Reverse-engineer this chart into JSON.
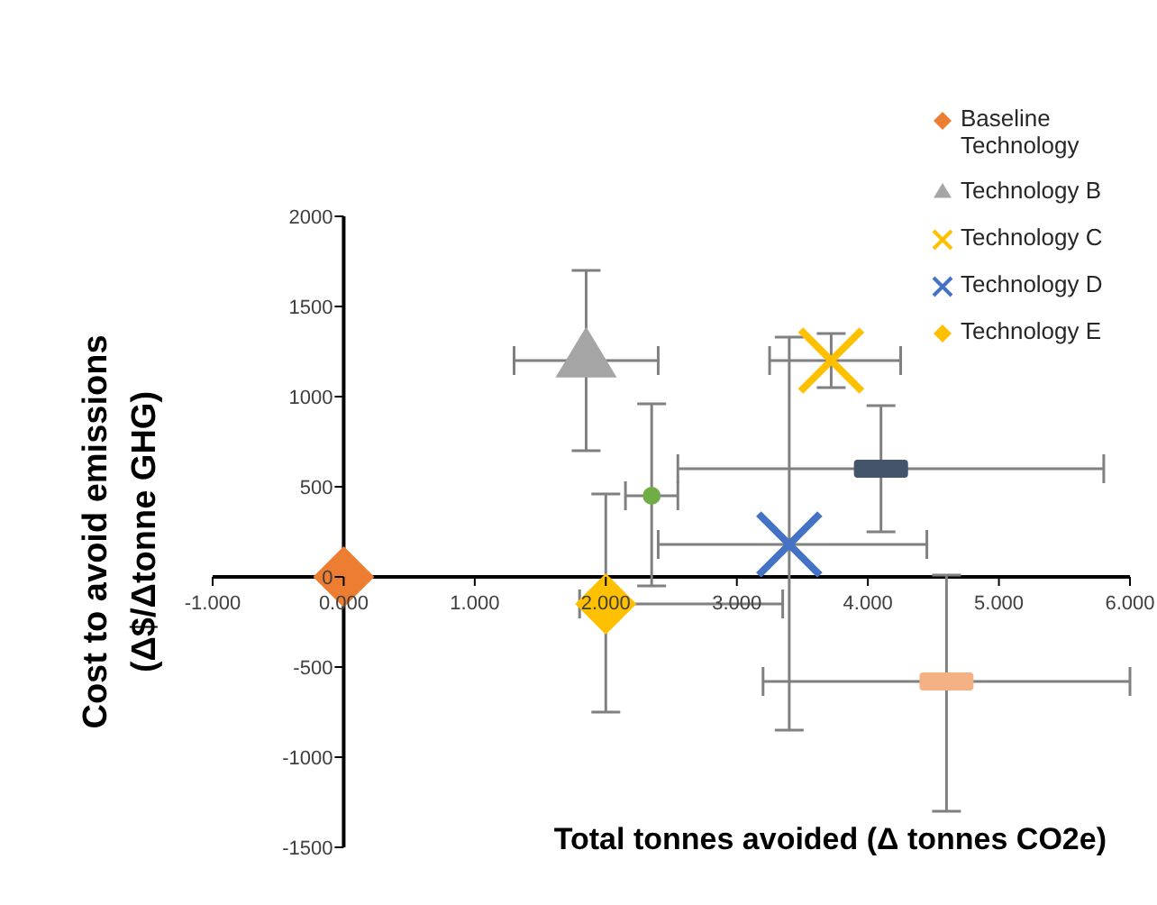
{
  "chart_data": {
    "type": "scatter",
    "xlabel": "Total tonnes avoided  (Δ tonnes CO2e)",
    "ylabel": "Cost to avoid emissions (Δ$/Δtonne GHG)",
    "xlim": [
      -1,
      6
    ],
    "xticks": [
      {
        "value": -1,
        "label": "-1.000"
      },
      {
        "value": 0,
        "label": "0.000"
      },
      {
        "value": 1,
        "label": "1.000"
      },
      {
        "value": 2,
        "label": "2.000"
      },
      {
        "value": 3,
        "label": "3.000"
      },
      {
        "value": 4,
        "label": "4.000"
      },
      {
        "value": 5,
        "label": "5.000"
      },
      {
        "value": 6,
        "label": "6.000"
      }
    ],
    "ylim": [
      -1500,
      2000
    ],
    "yticks": [
      -1500,
      -1000,
      -500,
      0,
      500,
      1000,
      1500,
      2000
    ],
    "legend": "top right",
    "series": [
      {
        "name": "Baseline Technology",
        "color": "#ed7d31",
        "marker": "diamond",
        "x": [
          0
        ],
        "values": [
          0
        ]
      },
      {
        "name": "Technology B",
        "color": "#a5a5a5",
        "marker": "triangle",
        "x": [
          1.85
        ],
        "values": [
          1200
        ],
        "errors": [
          [
            700,
            1700
          ]
        ],
        "xerrors": [
          [
            1.3,
            2.4
          ]
        ]
      },
      {
        "name": "Technology C",
        "color": "#ffc000",
        "marker": "cross",
        "x": [
          3.72
        ],
        "values": [
          1200
        ],
        "errors": [
          [
            1050,
            1350
          ]
        ],
        "xerrors": [
          [
            3.25,
            4.25
          ]
        ]
      },
      {
        "name": "Technology D",
        "color": "#4472c4",
        "marker": "cross",
        "x": [
          3.4
        ],
        "values": [
          180
        ],
        "errors": [
          [
            -850,
            1330
          ]
        ],
        "xerrors": [
          [
            2.4,
            4.45
          ]
        ]
      },
      {
        "name": "Technology E",
        "color": "#ffc000",
        "marker": "diamond",
        "x": [
          2
        ],
        "values": [
          -150
        ],
        "errors": [
          [
            -750,
            460
          ]
        ],
        "xerrors": [
          [
            1.8,
            3.35
          ]
        ]
      },
      {
        "color": "#70ad47",
        "marker": "circle",
        "x": [
          2.35
        ],
        "values": [
          450
        ],
        "errors": [
          [
            -50,
            960
          ]
        ],
        "xerrors": [
          [
            2.15,
            2.55
          ]
        ]
      },
      {
        "color": "#44546a",
        "marker": "square",
        "x": [
          4.1
        ],
        "values": [
          600
        ],
        "errors": [
          [
            250,
            950
          ]
        ],
        "xerrors": [
          [
            2.55,
            5.8
          ]
        ]
      },
      {
        "color": "#f4b183",
        "marker": "square",
        "x": [
          4.6
        ],
        "values": [
          -580
        ],
        "errors": [
          [
            10,
            -1300
          ]
        ],
        "xerrors": [
          [
            3.2,
            6
          ]
        ]
      }
    ]
  }
}
